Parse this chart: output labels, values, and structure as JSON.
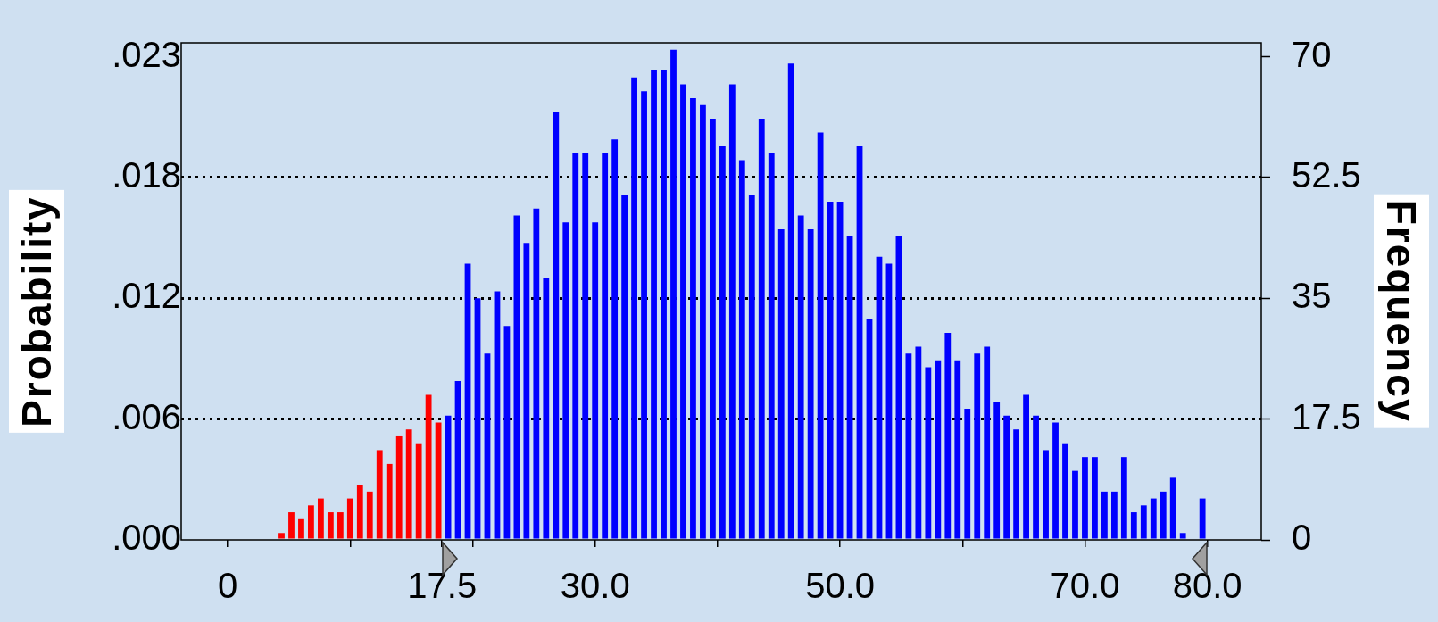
{
  "chart_data": {
    "type": "histogram",
    "ylabel": "Probability",
    "y2label": "Frequency",
    "bins": [
      0,
      0.8,
      1.6,
      2.4,
      3.2,
      4,
      4.8,
      5.6,
      6.4,
      7.2,
      8,
      8.8,
      9.6,
      10.4,
      11.2,
      12,
      12.8,
      13.6,
      14.4,
      15.2,
      16,
      16.8,
      17.6,
      18.4,
      19.2,
      20,
      20.8,
      21.6,
      22.4,
      23.2,
      24,
      24.8,
      25.6,
      26.4,
      27.2,
      28,
      28.8,
      29.6,
      30.4,
      31.2,
      32,
      32.8,
      33.6,
      34.4,
      35.2,
      36,
      36.8,
      37.6,
      38.4,
      39.2,
      40,
      40.8,
      41.6,
      42.4,
      43.2,
      44,
      44.8,
      45.6,
      46.4,
      47.2,
      48,
      48.8,
      49.6,
      50.4,
      51.2,
      52,
      52.8,
      53.6,
      54.4,
      55.2,
      56,
      56.8,
      57.6,
      58.4,
      59.2,
      60,
      60.8,
      61.6,
      62.4,
      63.2,
      64,
      64.8,
      65.6,
      66.4,
      67.2,
      68,
      68.8,
      69.6,
      70.4,
      71.2,
      72,
      72.8,
      73.6,
      74.4,
      75.2,
      76,
      76.8,
      77.6,
      78.4,
      79.2,
      80
    ],
    "series": [
      {
        "axis": "y2",
        "values": [
          0,
          0,
          0,
          0,
          0,
          1,
          4,
          3,
          5,
          6,
          4,
          4,
          6,
          8,
          7,
          13,
          11,
          15,
          16,
          14,
          21,
          17,
          18,
          23,
          40,
          35,
          27,
          36,
          31,
          47,
          43,
          48,
          38,
          62,
          46,
          56,
          56,
          46,
          56,
          58,
          50,
          67,
          65,
          68,
          68,
          71,
          66,
          64,
          63,
          61,
          57,
          66,
          55,
          50,
          61,
          56,
          45,
          69,
          47,
          45,
          59,
          49,
          49,
          44,
          57,
          32,
          41,
          40,
          44,
          27,
          28,
          25,
          26,
          30,
          26,
          19,
          27,
          28,
          20,
          18,
          16,
          21,
          18,
          13,
          17,
          14,
          10,
          12,
          12,
          7,
          7,
          12,
          4,
          5,
          6,
          7,
          9,
          1,
          0,
          6
        ],
        "colors": [
          "#ff0000",
          "#ff0000",
          "#ff0000",
          "#ff0000",
          "#ff0000",
          "#ff0000",
          "#ff0000",
          "#ff0000",
          "#ff0000",
          "#ff0000",
          "#ff0000",
          "#ff0000",
          "#ff0000",
          "#ff0000",
          "#ff0000",
          "#ff0000",
          "#ff0000",
          "#ff0000",
          "#ff0000",
          "#ff0000",
          "#ff0000",
          "#ff0000",
          "#0000ff",
          "#0000ff",
          "#0000ff",
          "#0000ff",
          "#0000ff",
          "#0000ff",
          "#0000ff",
          "#0000ff",
          "#0000ff",
          "#0000ff",
          "#0000ff",
          "#0000ff",
          "#0000ff",
          "#0000ff",
          "#0000ff",
          "#0000ff",
          "#0000ff",
          "#0000ff",
          "#0000ff",
          "#0000ff",
          "#0000ff",
          "#0000ff",
          "#0000ff",
          "#0000ff",
          "#0000ff",
          "#0000ff",
          "#0000ff",
          "#0000ff",
          "#0000ff",
          "#0000ff",
          "#0000ff",
          "#0000ff",
          "#0000ff",
          "#0000ff",
          "#0000ff",
          "#0000ff",
          "#0000ff",
          "#0000ff",
          "#0000ff",
          "#0000ff",
          "#0000ff",
          "#0000ff",
          "#0000ff",
          "#0000ff",
          "#0000ff",
          "#0000ff",
          "#0000ff",
          "#0000ff",
          "#0000ff",
          "#0000ff",
          "#0000ff",
          "#0000ff",
          "#0000ff",
          "#0000ff",
          "#0000ff",
          "#0000ff",
          "#0000ff",
          "#0000ff",
          "#0000ff",
          "#0000ff",
          "#0000ff",
          "#0000ff",
          "#0000ff",
          "#0000ff",
          "#0000ff",
          "#0000ff",
          "#0000ff",
          "#0000ff",
          "#0000ff",
          "#0000ff",
          "#0000ff",
          "#0000ff",
          "#0000ff",
          "#0000ff",
          "#0000ff",
          "#0000ff",
          "#0000ff",
          "#0000ff"
        ]
      }
    ],
    "xlim": [
      -3.8,
      84.4
    ],
    "xticks": [
      0,
      {
        "value": 10,
        "label": null
      },
      17.5,
      {
        "value": 20,
        "label": null
      },
      {
        "value": 30,
        "label": "30.0"
      },
      {
        "value": 40,
        "label": null
      },
      {
        "value": 50,
        "label": "50.0"
      },
      {
        "value": 60,
        "label": null
      },
      {
        "value": 70,
        "label": "70.0"
      },
      {
        "value": 80,
        "label": "80.0"
      }
    ],
    "ylim": [
      0,
      0.024
    ],
    "yticks": [
      {
        "value": 0,
        "label": ".000"
      },
      {
        "value": 0.00583,
        "label": ".006"
      },
      {
        "value": 0.01167,
        "label": ".012"
      },
      {
        "value": 0.0175,
        "label": ".018"
      },
      {
        "value": 0.02333,
        "label": ".023"
      }
    ],
    "y2lim": [
      0,
      72
    ],
    "y2ticks": [
      0,
      17.5,
      35,
      52.5,
      70
    ],
    "grid": "y"
  }
}
